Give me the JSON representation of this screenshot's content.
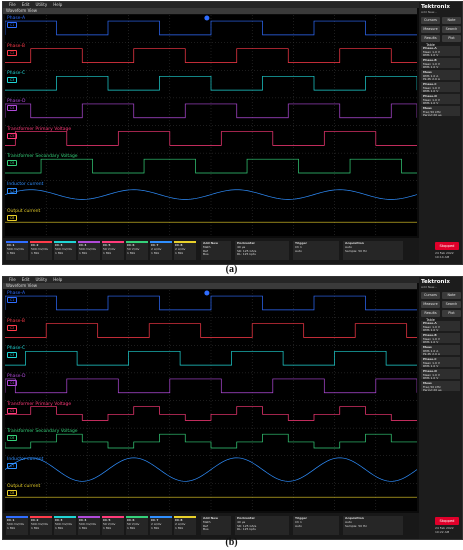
{
  "panels": [
    {
      "id": "a",
      "caption": "(a)",
      "menu": [
        "File",
        "Edit",
        "Utility",
        "Help"
      ],
      "window_title": "Waveform View",
      "brand": "Tektronix",
      "brand_sub": "Add New...",
      "buttons": [
        "Cursors",
        "Note",
        "Measure",
        "Search",
        "Results Table",
        "Plot"
      ],
      "channels": [
        {
          "name": "Phase-A",
          "color": "#2f6dff",
          "badge": "C1",
          "kind": "square",
          "phase": 0.0
        },
        {
          "name": "Phase-B",
          "color": "#ff3b4a",
          "badge": "C2",
          "kind": "square",
          "phase": 0.25
        },
        {
          "name": "Phase-C",
          "color": "#1fd4d4",
          "badge": "C3",
          "kind": "square",
          "phase": 0.5
        },
        {
          "name": "Phase-D",
          "color": "#b04ad9",
          "badge": "C4",
          "kind": "square",
          "phase": 0.75
        },
        {
          "name": "Transformer Primary Voltage",
          "color": "#ff3b7a",
          "badge": "C5",
          "kind": "square",
          "phase": 0.1
        },
        {
          "name": "Transformer Secondary Voltage",
          "color": "#35d17a",
          "badge": "C6",
          "kind": "square",
          "phase": 0.35
        },
        {
          "name": "Inductor current",
          "color": "#2f8fff",
          "badge": "C7",
          "kind": "sine",
          "amp": 0.35
        },
        {
          "name": "Output current",
          "color": "#e8d02a",
          "badge": "C8",
          "kind": "flat"
        }
      ],
      "meas_boxes": [
        {
          "hdr": "Phase-A",
          "lines": [
            "Mean 1.0 V",
            "RMS 1.0 V"
          ]
        },
        {
          "hdr": "Phase-B",
          "lines": [
            "Mean 1.0 V",
            "RMS 1.0 V"
          ]
        },
        {
          "hdr": "Meas",
          "lines": [
            "RMS 1.0 A",
            "Pk-Pk 2.0 A"
          ]
        },
        {
          "hdr": "Phase-C",
          "lines": [
            "Mean 1.0 V",
            "RMS 1.0 V"
          ]
        },
        {
          "hdr": "Phase-D",
          "lines": [
            "Mean 1.0 V",
            "RMS 1.0 V"
          ]
        },
        {
          "hdr": "Meas",
          "lines": [
            "Freq 50 kHz",
            "Period 20 µs"
          ]
        }
      ],
      "chips": [
        {
          "nm": "Ch 1",
          "l1": "500 mV/div",
          "l2": "1 MΩ"
        },
        {
          "nm": "Ch 2",
          "l1": "500 mV/div",
          "l2": "1 MΩ"
        },
        {
          "nm": "Ch 3",
          "l1": "500 mV/div",
          "l2": "1 MΩ"
        },
        {
          "nm": "Ch 4",
          "l1": "500 mV/div",
          "l2": "1 MΩ"
        },
        {
          "nm": "Ch 5",
          "l1": "50 V/div",
          "l2": "1 MΩ"
        },
        {
          "nm": "Ch 6",
          "l1": "50 V/div",
          "l2": "1 MΩ"
        },
        {
          "nm": "Ch 7",
          "l1": "2 A/div",
          "l2": "1 MΩ"
        },
        {
          "nm": "Ch 8",
          "l1": "2 A/div",
          "l2": "1 MΩ"
        }
      ],
      "info_boxes": [
        {
          "hdr": "Add New",
          "lines": [
            "Math",
            "Ref",
            "Bus"
          ]
        },
        {
          "hdr": "Horizontal",
          "lines": [
            "40 µs",
            "SR: 125 GS/s",
            "RL: 125 kpts"
          ]
        },
        {
          "hdr": "Trigger",
          "lines": [
            "Ch 1",
            "Auto"
          ]
        },
        {
          "hdr": "Acquisition",
          "lines": [
            "Auto",
            "Sample: 50 Hz"
          ]
        }
      ],
      "stop_label": "Stopped",
      "datetime": [
        "24 Feb 2022",
        "10:14 AM"
      ]
    },
    {
      "id": "b",
      "caption": "(b)",
      "menu": [
        "File",
        "Edit",
        "Utility",
        "Help"
      ],
      "window_title": "Waveform View",
      "brand": "Tektronix",
      "brand_sub": "Add New...",
      "buttons": [
        "Cursors",
        "Note",
        "Measure",
        "Search",
        "Results Table",
        "Plot"
      ],
      "channels": [
        {
          "name": "Phase-A",
          "color": "#2f6dff",
          "badge": "C1",
          "kind": "square",
          "phase": 0.0
        },
        {
          "name": "Phase-B",
          "color": "#ff3b4a",
          "badge": "C2",
          "kind": "square",
          "phase": 0.4
        },
        {
          "name": "Phase-C",
          "color": "#1fd4d4",
          "badge": "C3",
          "kind": "square",
          "phase": 0.2
        },
        {
          "name": "Phase-D",
          "color": "#b04ad9",
          "badge": "C4",
          "kind": "square",
          "phase": 0.6
        },
        {
          "name": "Transformer Primary Voltage",
          "color": "#ff3b7a",
          "badge": "C5",
          "kind": "stair",
          "phase": 0.0
        },
        {
          "name": "Transformer Secondary Voltage",
          "color": "#35d17a",
          "badge": "C6",
          "kind": "stair",
          "phase": 0.25
        },
        {
          "name": "Inductor current",
          "color": "#2f8fff",
          "badge": "C7",
          "kind": "sine",
          "amp": 0.85
        },
        {
          "name": "Output current",
          "color": "#e8d02a",
          "badge": "C8",
          "kind": "flat"
        }
      ],
      "meas_boxes": [
        {
          "hdr": "Phase-A",
          "lines": [
            "Mean 1.0 V",
            "RMS 1.0 V"
          ]
        },
        {
          "hdr": "Phase-B",
          "lines": [
            "Mean 1.0 V",
            "RMS 1.0 V"
          ]
        },
        {
          "hdr": "Meas",
          "lines": [
            "RMS 1.0 A",
            "Pk-Pk 2.0 A"
          ]
        },
        {
          "hdr": "Phase-C",
          "lines": [
            "Mean 1.0 V",
            "RMS 1.0 V"
          ]
        },
        {
          "hdr": "Phase-D",
          "lines": [
            "Mean 1.0 V",
            "RMS 1.0 V"
          ]
        },
        {
          "hdr": "Meas",
          "lines": [
            "Freq 50 kHz",
            "Period 20 µs"
          ]
        }
      ],
      "chips": [
        {
          "nm": "Ch 1",
          "l1": "500 mV/div",
          "l2": "1 MΩ"
        },
        {
          "nm": "Ch 2",
          "l1": "500 mV/div",
          "l2": "1 MΩ"
        },
        {
          "nm": "Ch 3",
          "l1": "500 mV/div",
          "l2": "1 MΩ"
        },
        {
          "nm": "Ch 4",
          "l1": "500 mV/div",
          "l2": "1 MΩ"
        },
        {
          "nm": "Ch 5",
          "l1": "50 V/div",
          "l2": "1 MΩ"
        },
        {
          "nm": "Ch 6",
          "l1": "50 V/div",
          "l2": "1 MΩ"
        },
        {
          "nm": "Ch 7",
          "l1": "2 A/div",
          "l2": "1 MΩ"
        },
        {
          "nm": "Ch 8",
          "l1": "2 A/div",
          "l2": "1 MΩ"
        }
      ],
      "info_boxes": [
        {
          "hdr": "Add New",
          "lines": [
            "Math",
            "Ref",
            "Bus"
          ]
        },
        {
          "hdr": "Horizontal",
          "lines": [
            "40 µs",
            "SR: 125 GS/s",
            "RL: 125 kpts"
          ]
        },
        {
          "hdr": "Trigger",
          "lines": [
            "Ch 1",
            "Auto"
          ]
        },
        {
          "hdr": "Acquisition",
          "lines": [
            "Auto",
            "Sample: 50 Hz"
          ]
        }
      ],
      "stop_label": "Stopped",
      "datetime": [
        "24 Feb 2022",
        "10:22 AM"
      ]
    }
  ]
}
